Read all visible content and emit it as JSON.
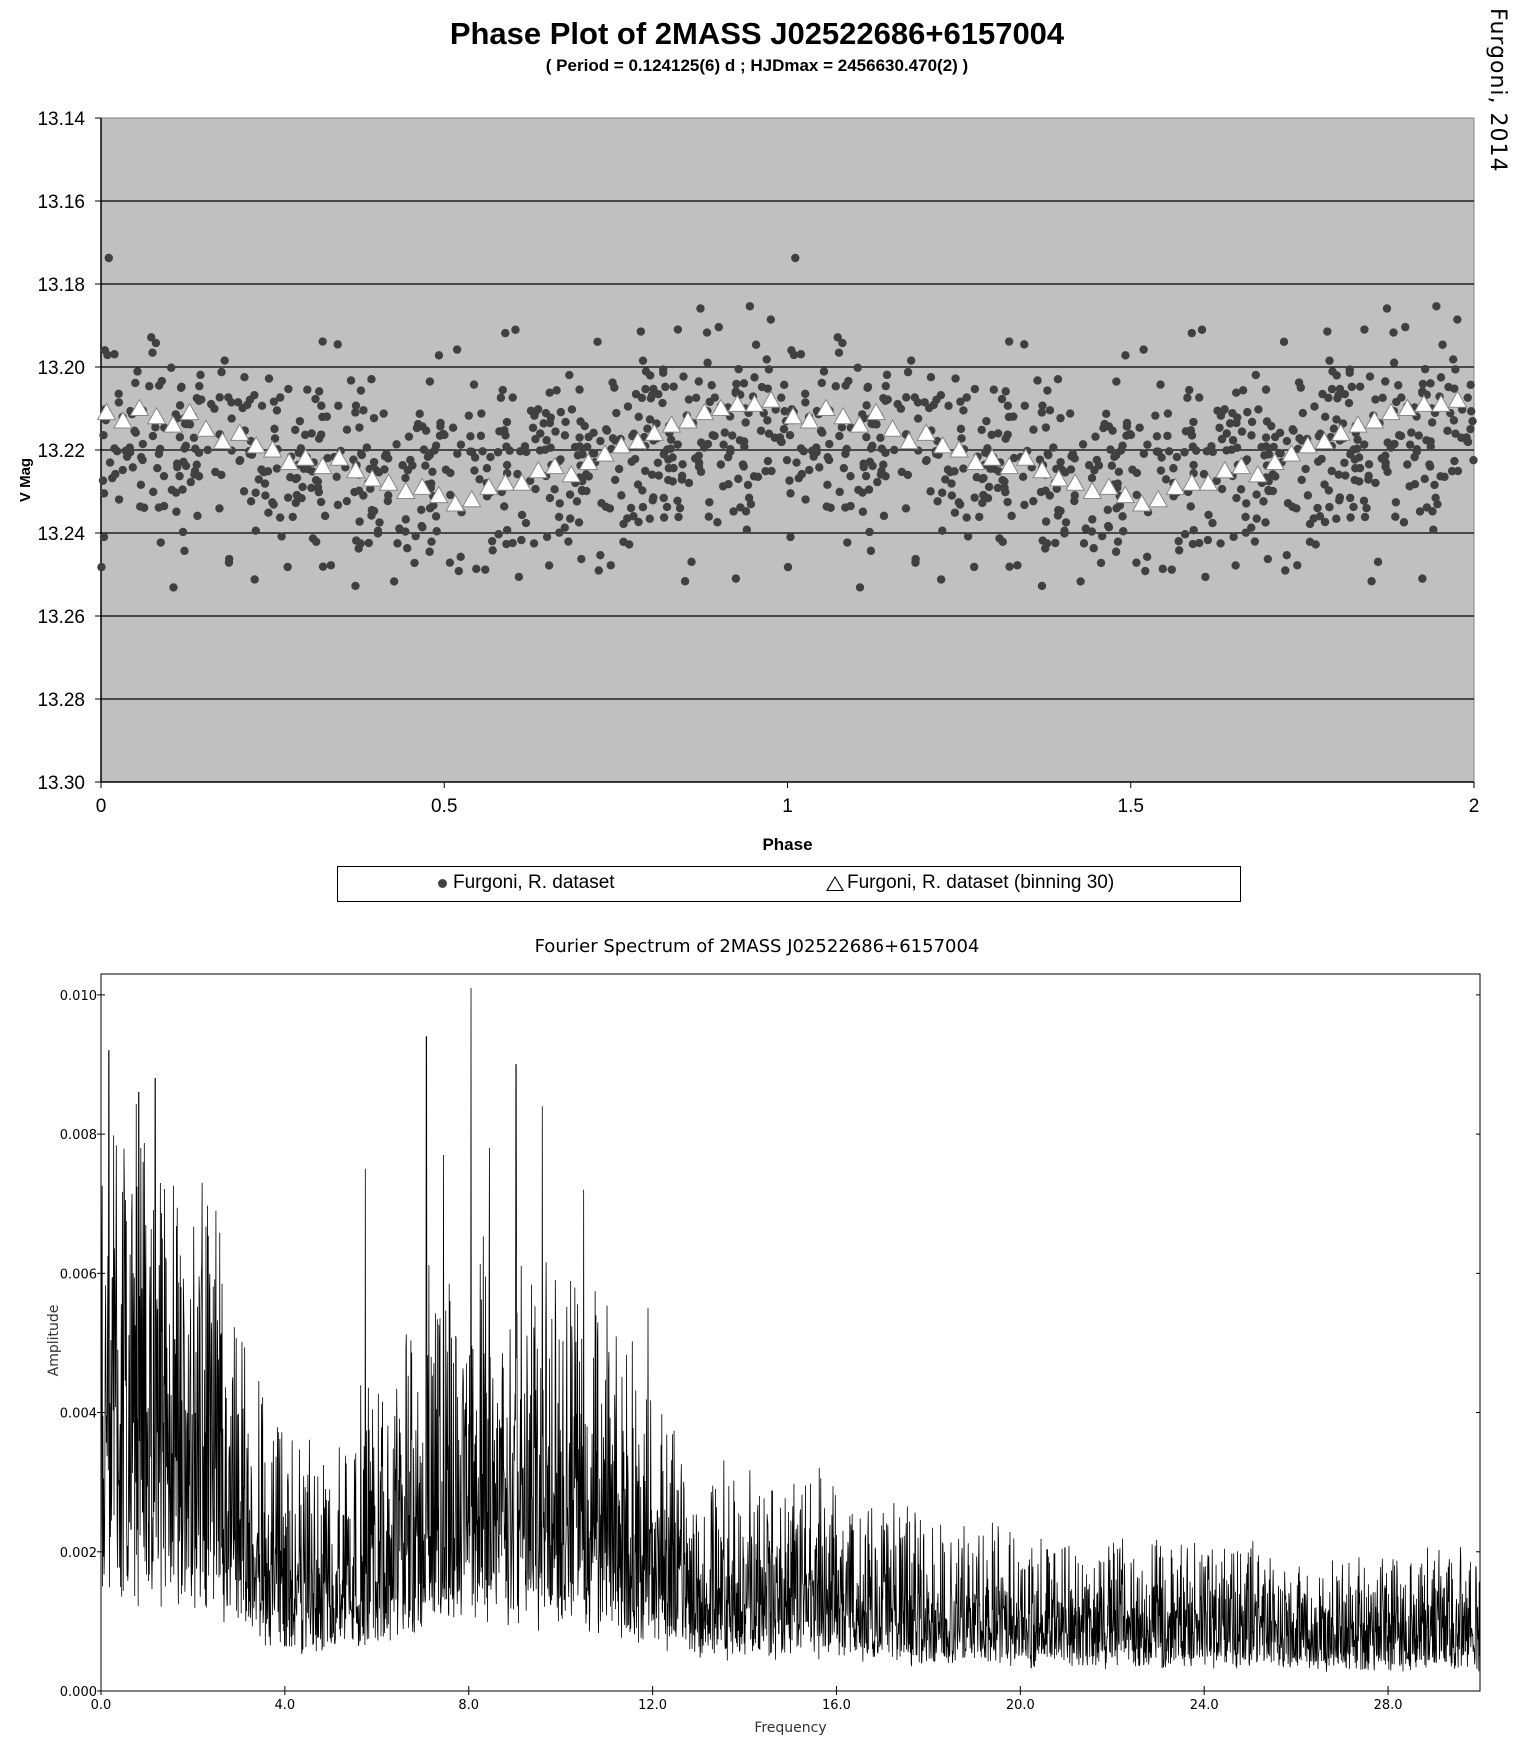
{
  "credit": "Furgoni, 2014",
  "chart_data": [
    {
      "type": "scatter",
      "title": "Phase Plot of 2MASS J02522686+6157004",
      "subtitle": "( Period = 0.124125(6) d ; HJDmax = 2456630.470(2) )",
      "xlabel": "Phase",
      "ylabel": "V Mag",
      "xlim": [
        0,
        2
      ],
      "ylim": [
        13.14,
        13.3
      ],
      "y_inverted": true,
      "x_ticks": [
        "0",
        "0.5",
        "1",
        "1.5",
        "2"
      ],
      "y_ticks": [
        "13.14",
        "13.16",
        "13.18",
        "13.20",
        "13.22",
        "13.24",
        "13.26",
        "13.28",
        "13.30"
      ],
      "grid": "horizontal",
      "plot_background": "#c0c0c0",
      "legend_position": "bottom",
      "series": [
        {
          "name": "Furgoni, R. dataset",
          "marker": "dot",
          "color": "#404040",
          "description_model": {
            "mean": 13.221,
            "amplitude": 0.011,
            "scatter_sd": 0.012,
            "n_points_per_cycle": 620
          }
        },
        {
          "name": "Furgoni, R. dataset (binning 30)",
          "marker": "triangle",
          "color": "#ffffff",
          "x": [
            0.008,
            0.032,
            0.056,
            0.081,
            0.105,
            0.129,
            0.153,
            0.177,
            0.202,
            0.226,
            0.25,
            0.274,
            0.298,
            0.323,
            0.347,
            0.371,
            0.395,
            0.419,
            0.444,
            0.468,
            0.492,
            0.516,
            0.54,
            0.565,
            0.589,
            0.613,
            0.637,
            0.661,
            0.685,
            0.71,
            0.734,
            0.758,
            0.782,
            0.806,
            0.831,
            0.855,
            0.879,
            0.903,
            0.927,
            0.952,
            0.976,
            1.008,
            1.032,
            1.056,
            1.081,
            1.105,
            1.129,
            1.153,
            1.177,
            1.202,
            1.226,
            1.25,
            1.274,
            1.298,
            1.323,
            1.347,
            1.371,
            1.395,
            1.419,
            1.444,
            1.468,
            1.492,
            1.516,
            1.54,
            1.565,
            1.589,
            1.613,
            1.637,
            1.661,
            1.685,
            1.71,
            1.734,
            1.758,
            1.782,
            1.806,
            1.831,
            1.855,
            1.879,
            1.903,
            1.927,
            1.952,
            1.976
          ],
          "y": [
            13.211,
            13.213,
            13.21,
            13.212,
            13.214,
            13.211,
            13.215,
            13.218,
            13.216,
            13.219,
            13.22,
            13.223,
            13.222,
            13.224,
            13.222,
            13.225,
            13.227,
            13.228,
            13.23,
            13.229,
            13.231,
            13.233,
            13.232,
            13.229,
            13.228,
            13.228,
            13.225,
            13.224,
            13.226,
            13.223,
            13.221,
            13.219,
            13.218,
            13.216,
            13.214,
            13.213,
            13.211,
            13.21,
            13.209,
            13.209,
            13.208,
            13.212,
            13.213,
            13.21,
            13.212,
            13.214,
            13.211,
            13.215,
            13.218,
            13.216,
            13.219,
            13.22,
            13.223,
            13.222,
            13.224,
            13.222,
            13.225,
            13.227,
            13.228,
            13.23,
            13.229,
            13.231,
            13.233,
            13.232,
            13.229,
            13.228,
            13.228,
            13.225,
            13.224,
            13.226,
            13.223,
            13.221,
            13.219,
            13.218,
            13.216,
            13.214,
            13.213,
            13.211,
            13.21,
            13.209,
            13.209,
            13.208
          ]
        }
      ]
    },
    {
      "type": "line",
      "title": "Fourier Spectrum of 2MASS J02522686+6157004",
      "xlabel": "Frequency",
      "ylabel": "Amplitude",
      "xlim": [
        0,
        30
      ],
      "ylim": [
        0,
        0.0103
      ],
      "x_ticks": [
        "0.0",
        "4.0",
        "8.0",
        "12.0",
        "16.0",
        "20.0",
        "24.0",
        "28.0"
      ],
      "y_ticks": [
        "0.000",
        "0.002",
        "0.004",
        "0.006",
        "0.008",
        "0.010"
      ],
      "grid": "none",
      "series": [
        {
          "name": "",
          "color": "#000000",
          "envelope_x": [
            0,
            0.5,
            1,
            1.5,
            2,
            2.5,
            3,
            3.5,
            4,
            5,
            6,
            7,
            8,
            9,
            10,
            11,
            12,
            12.5,
            13,
            14,
            15,
            16,
            17,
            18,
            20,
            22,
            24,
            26,
            28,
            30
          ],
          "envelope_amp": [
            0.006,
            0.0058,
            0.0057,
            0.005,
            0.0048,
            0.0046,
            0.0038,
            0.003,
            0.0024,
            0.0022,
            0.003,
            0.0038,
            0.0042,
            0.0042,
            0.004,
            0.0036,
            0.003,
            0.0026,
            0.0022,
            0.002,
            0.002,
            0.0021,
            0.0018,
            0.0016,
            0.0015,
            0.0014,
            0.0014,
            0.0013,
            0.0013,
            0.0013
          ],
          "peaks": [
            {
              "f": 0.17,
              "a": 0.0092
            },
            {
              "f": 0.82,
              "a": 0.0086
            },
            {
              "f": 1.18,
              "a": 0.0088
            },
            {
              "f": 2.2,
              "a": 0.0073
            },
            {
              "f": 5.75,
              "a": 0.0075
            },
            {
              "f": 7.08,
              "a": 0.0094
            },
            {
              "f": 7.45,
              "a": 0.0077
            },
            {
              "f": 8.05,
              "a": 0.0101
            },
            {
              "f": 8.45,
              "a": 0.0078
            },
            {
              "f": 9.03,
              "a": 0.009
            },
            {
              "f": 9.6,
              "a": 0.0084
            },
            {
              "f": 10.5,
              "a": 0.0072
            },
            {
              "f": 11.9,
              "a": 0.0055
            }
          ]
        }
      ]
    }
  ]
}
